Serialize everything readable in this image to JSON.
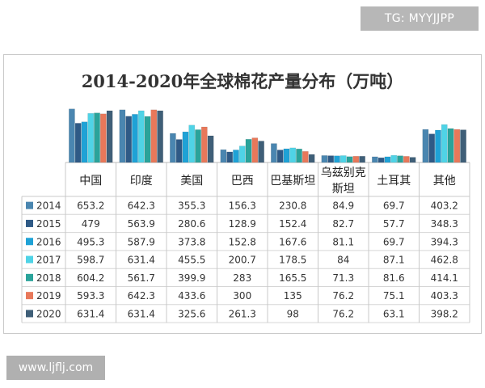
{
  "watermark_top": "TG: MYYJJPP",
  "watermark_bottom": "www.ljflj.com",
  "chart_data": {
    "type": "bar",
    "title": "2014-2020年全球棉花产量分布（万吨）",
    "categories": [
      "中国",
      "印度",
      "美国",
      "巴西",
      "巴基斯坦",
      "乌兹别克斯坦",
      "土耳其",
      "其他"
    ],
    "category_lines": [
      [
        "中国"
      ],
      [
        "印度"
      ],
      [
        "美国"
      ],
      [
        "巴西"
      ],
      [
        "巴基斯坦"
      ],
      [
        "乌兹别克",
        "斯坦"
      ],
      [
        "土耳其"
      ],
      [
        "其他"
      ]
    ],
    "series": [
      {
        "name": "2014",
        "color": "#4a86b0",
        "values": [
          653.2,
          642.3,
          355.3,
          156.3,
          230.8,
          84.9,
          69.7,
          403.2
        ]
      },
      {
        "name": "2015",
        "color": "#2f5a86",
        "values": [
          479,
          563.9,
          280.6,
          128.9,
          152.4,
          82.7,
          57.7,
          348.3
        ]
      },
      {
        "name": "2016",
        "color": "#1fa2d6",
        "values": [
          495.3,
          587.9,
          373.8,
          152.8,
          167.6,
          81.1,
          69.7,
          394.3
        ]
      },
      {
        "name": "2017",
        "color": "#4fd3e6",
        "values": [
          598.7,
          631.4,
          455.5,
          200.7,
          178.5,
          84,
          87.1,
          462.8
        ]
      },
      {
        "name": "2018",
        "color": "#2aa39a",
        "values": [
          604.2,
          561.7,
          399.9,
          283,
          165.5,
          71.3,
          81.6,
          414.1
        ]
      },
      {
        "name": "2019",
        "color": "#e8785a",
        "values": [
          593.3,
          642.3,
          433.6,
          300,
          135,
          76.2,
          75.1,
          403.3
        ]
      },
      {
        "name": "2020",
        "color": "#3f5f78",
        "values": [
          631.4,
          631.4,
          325.6,
          261.3,
          98,
          76.2,
          63.1,
          398.2
        ]
      }
    ],
    "table": [
      [
        "653.2",
        "642.3",
        "355.3",
        "156.3",
        "230.8",
        "84.9",
        "69.7",
        "403.2"
      ],
      [
        "479",
        "563.9",
        "280.6",
        "128.9",
        "152.4",
        "82.7",
        "57.7",
        "348.3"
      ],
      [
        "495.3",
        "587.9",
        "373.8",
        "152.8",
        "167.6",
        "81.1",
        "69.7",
        "394.3"
      ],
      [
        "598.7",
        "631.4",
        "455.5",
        "200.7",
        "178.5",
        "84",
        "87.1",
        "462.8"
      ],
      [
        "604.2",
        "561.7",
        "399.9",
        "283",
        "165.5",
        "71.3",
        "81.6",
        "414.1"
      ],
      [
        "593.3",
        "642.3",
        "433.6",
        "300",
        "135",
        "76.2",
        "75.1",
        "403.3"
      ],
      [
        "631.4",
        "631.4",
        "325.6",
        "261.3",
        "98",
        "76.2",
        "63.1",
        "398.2"
      ]
    ],
    "ylim": [
      0,
      700
    ],
    "grid": false,
    "legend": "data-table-left"
  }
}
